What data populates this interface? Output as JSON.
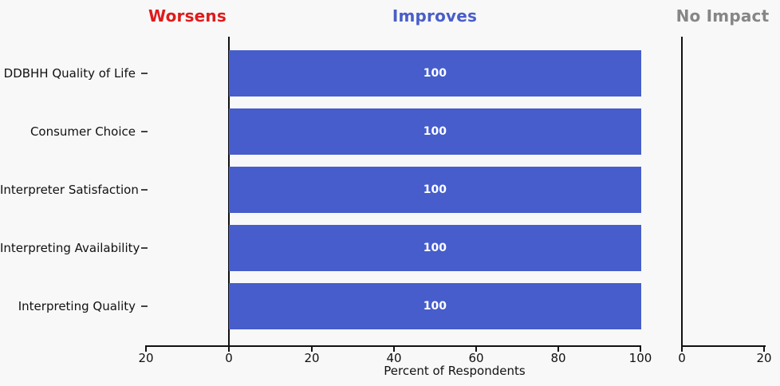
{
  "chart_data": {
    "type": "bar",
    "orientation": "horizontal",
    "title": "",
    "xlabel": "Percent of Respondents",
    "background": "#f8f8f8",
    "axis_color": "#111111",
    "sections": [
      {
        "title": "Worsens",
        "title_color": "#dd1c1c"
      },
      {
        "title": "Improves",
        "title_color": "#4a5ec9"
      },
      {
        "title": "No Impact",
        "title_color": "#868686"
      }
    ],
    "categories": [
      "DDBHH Quality of Life",
      "Consumer Choice",
      "Interpreter Satisfaction",
      "Interpreting Availability",
      "Interpreting Quality"
    ],
    "series": [
      {
        "name": "Worsens",
        "color": "#dd1c1c",
        "values": [
          0,
          0,
          0,
          0,
          0
        ]
      },
      {
        "name": "Improves",
        "color": "#465dcb",
        "values": [
          100,
          100,
          100,
          100,
          100
        ]
      },
      {
        "name": "No Impact",
        "color": "#868686",
        "values": [
          0,
          0,
          0,
          0,
          0
        ]
      }
    ],
    "bar_value_labels": [
      "100",
      "100",
      "100",
      "100",
      "100"
    ],
    "main_axis": {
      "range": [
        -20,
        100
      ],
      "tick_labels": [
        "20",
        "0",
        "20",
        "40",
        "60",
        "80",
        "100"
      ]
    },
    "no_impact_axis": {
      "range": [
        0,
        20
      ],
      "tick_labels": [
        "0",
        "20"
      ]
    },
    "grid": false,
    "legend_position": "none"
  }
}
